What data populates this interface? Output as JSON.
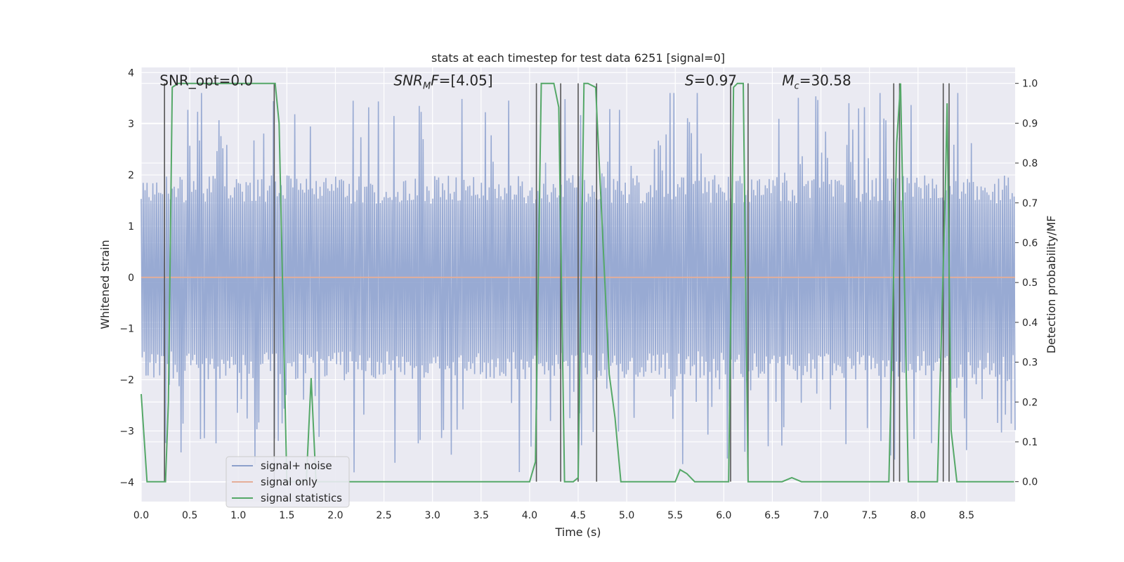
{
  "chart_data": {
    "type": "line",
    "title": "stats at each timestep for test data 6251 [signal=0]",
    "xlabel": "Time (s)",
    "ylabel_left": "Whitened strain",
    "ylabel_right": "Detection probability/MF",
    "xlim": [
      0.0,
      9.0
    ],
    "ylim_left": [
      -4.38,
      4.1
    ],
    "ylim_right": [
      -0.05,
      1.04
    ],
    "xticks": [
      0.0,
      0.5,
      1.0,
      1.5,
      2.0,
      2.5,
      3.0,
      3.5,
      4.0,
      4.5,
      5.0,
      5.5,
      6.0,
      6.5,
      7.0,
      7.5,
      8.0,
      8.5
    ],
    "xtick_labels": [
      "0.0",
      "0.5",
      "1.0",
      "1.5",
      "2.0",
      "2.5",
      "3.0",
      "3.5",
      "4.0",
      "4.5",
      "5.0",
      "5.5",
      "6.0",
      "6.5",
      "7.0",
      "7.5",
      "8.0",
      "8.5"
    ],
    "yticks_left": [
      4,
      3,
      2,
      1,
      0,
      -1,
      -2,
      -3,
      -4
    ],
    "ytick_labels_left": [
      "4",
      "3",
      "2",
      "1",
      "0",
      "−1",
      "−2",
      "−3",
      "−4"
    ],
    "yticks_right": [
      1.0,
      0.9,
      0.8,
      0.7,
      0.6,
      0.5,
      0.4,
      0.3,
      0.2,
      0.1,
      0.0
    ],
    "ytick_labels_right": [
      "1.0",
      "0.9",
      "0.8",
      "0.7",
      "0.6",
      "0.5",
      "0.4",
      "0.3",
      "0.2",
      "0.1",
      "0.0"
    ],
    "grid": true,
    "legend_location": "lower-left",
    "legend": [
      {
        "label": "signal+ noise",
        "color": "#8da0cb"
      },
      {
        "label": "signal only",
        "color": "#e5ae98"
      },
      {
        "label": "signal statistics",
        "color": "#55a868"
      }
    ],
    "noise_series": {
      "name": "signal+ noise",
      "axis": "left",
      "color": "#8fa3cf",
      "n_samples": 900,
      "x_range": [
        0.0,
        9.0
      ],
      "typical_abs_amplitude": 1.6,
      "max_amplitude": 3.6,
      "min_amplitude": -4.0
    },
    "signal_only": {
      "name": "signal only",
      "axis": "left",
      "color": "#e5ae98",
      "value": 0.0
    },
    "stat_series": {
      "name": "signal statistics",
      "axis": "right",
      "color": "#55a868",
      "x": [
        0.0,
        0.06,
        0.25,
        0.28,
        0.32,
        0.38,
        0.5,
        1.38,
        1.42,
        1.5,
        1.6,
        1.7,
        1.75,
        1.8,
        1.9,
        2.3,
        3.9,
        4.0,
        4.06,
        4.12,
        4.25,
        4.3,
        4.36,
        4.45,
        4.5,
        4.56,
        4.6,
        4.68,
        4.82,
        4.88,
        4.94,
        5.5,
        5.55,
        5.62,
        5.7,
        6.05,
        6.1,
        6.14,
        6.2,
        6.25,
        6.3,
        6.4,
        6.6,
        6.7,
        6.8,
        6.9,
        7.7,
        7.78,
        7.82,
        7.9,
        8.2,
        8.28,
        8.3,
        8.34,
        8.4,
        8.5,
        8.99
      ],
      "y": [
        0.22,
        0.0,
        0.0,
        0.2,
        0.99,
        1.0,
        1.0,
        1.0,
        0.9,
        0.0,
        0.0,
        0.0,
        0.26,
        0.0,
        0.0,
        0.0,
        0.0,
        0.0,
        0.05,
        1.0,
        1.0,
        0.94,
        0.0,
        0.0,
        0.01,
        1.0,
        1.0,
        0.99,
        0.27,
        0.16,
        0.0,
        0.0,
        0.03,
        0.02,
        0.0,
        0.0,
        0.99,
        1.0,
        1.0,
        0.0,
        0.0,
        0.0,
        0.0,
        0.01,
        0.0,
        0.0,
        0.0,
        0.85,
        1.0,
        0.0,
        0.0,
        0.72,
        0.95,
        0.13,
        0.0,
        0.0,
        0.0
      ]
    },
    "vertical_markers": {
      "color": "#555555",
      "x": [
        0.24,
        1.37,
        4.07,
        4.32,
        4.5,
        4.69,
        6.07,
        6.25,
        7.75,
        7.81,
        8.26,
        8.32
      ]
    },
    "annotations": [
      {
        "text": "SNR_opt=0.0",
        "x": 0.19,
        "y": 3.75
      },
      {
        "text_html": "SNR<tspan font-style='italic' font-size='13' dy='4'>M</tspan><tspan dy='-4'>F=[4.05]</tspan>",
        "text": "SNR_MF=[4.05]",
        "x": 2.6,
        "y": 3.75
      },
      {
        "text": "S=0.97",
        "x": 5.6,
        "y": 3.75
      },
      {
        "text": "M_c=30.58",
        "x": 6.6,
        "y": 3.75
      }
    ]
  }
}
